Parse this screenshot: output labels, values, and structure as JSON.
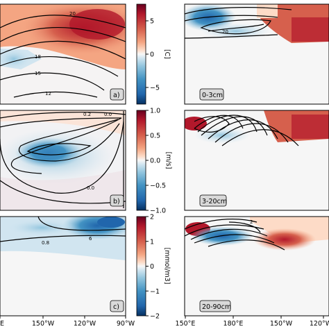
{
  "chart_data": {
    "type": "heatmap",
    "x_ticks": [
      "150°E",
      "180°E",
      "150°W",
      "120°W",
      "90°W"
    ],
    "left_column": {
      "x_ticks_visible": [
        "E",
        "150°W",
        "120°W",
        "90°W"
      ],
      "panels": [
        {
          "label": "a)",
          "colorbar": {
            "ticks": [
              "5",
              "0",
              "−5"
            ],
            "tick_values": [
              5,
              0,
              -5
            ],
            "unit": "[C]",
            "range": [
              -7.5,
              7.5
            ]
          },
          "contour_labels": [
            "18",
            "15",
            "12"
          ]
        },
        {
          "label": "b)",
          "colorbar": {
            "ticks": [
              "1.0",
              "0.5",
              "0.0",
              "−0.5",
              "−1.0"
            ],
            "tick_values": [
              1.0,
              0.5,
              0.0,
              -0.5,
              -1.0
            ],
            "unit": "[m/s]",
            "range": [
              -1.0,
              1.0
            ]
          },
          "contour_labels": [
            "0.2",
            "0.0",
            "0.0"
          ]
        },
        {
          "label": "c)",
          "colorbar": {
            "ticks": [
              "2",
              "1",
              "0",
              "−1",
              "−2"
            ],
            "tick_values": [
              2,
              1,
              0,
              -1,
              -2
            ],
            "unit": "[mmol/m3]",
            "range": [
              -2,
              2
            ]
          },
          "contour_labels": [
            "0.8"
          ]
        }
      ]
    },
    "right_column": {
      "x_ticks_visible": [
        "150°E",
        "180°E",
        "150°W",
        "120°W"
      ],
      "panels": [
        {
          "label": "0-3cm",
          "contour_labels": [
            "20"
          ]
        },
        {
          "label": "3-20cm",
          "contour_labels": []
        },
        {
          "label": "20-90cm",
          "contour_labels": [
            "2"
          ]
        }
      ]
    }
  }
}
